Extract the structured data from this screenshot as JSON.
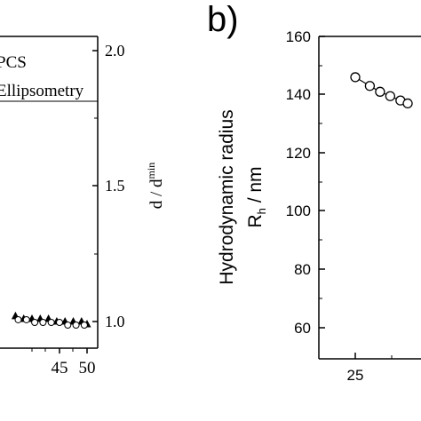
{
  "chart_data": [
    {
      "type": "scatter",
      "panel_label": "",
      "title": "",
      "xlabel": "",
      "ylabel_right": "d / d",
      "ylabel_right_sup": "min",
      "x_ticks": [
        "45",
        "50"
      ],
      "y_ticks_right": [
        "1.0",
        "1.5",
        "2.0"
      ],
      "xlim": [
        36.5,
        51.5
      ],
      "ylim_right": [
        0.95,
        2.0
      ],
      "legend": {
        "placement": "top-left",
        "entries": [
          "PCS",
          "Ellipsometry"
        ]
      },
      "series": [
        {
          "name": "Ellipsometry",
          "marker": "filled-triangle",
          "x": [
            37.0,
            38.5,
            40.0,
            41.5,
            43.0,
            44.5,
            46.0,
            47.5,
            49.0,
            50.0
          ],
          "y": [
            1.02,
            1.01,
            1.01,
            1.01,
            1.01,
            1.0,
            1.0,
            1.0,
            1.0,
            0.99
          ]
        },
        {
          "name": "PCS",
          "marker": "open-circle",
          "x": [
            37.5,
            39.0,
            40.5,
            42.0,
            43.5,
            45.0,
            46.5,
            48.0,
            49.5
          ],
          "y": [
            1.01,
            1.01,
            1.0,
            1.0,
            1.0,
            1.0,
            0.99,
            0.99,
            0.99
          ]
        }
      ]
    },
    {
      "type": "line",
      "panel_label": "b)",
      "title": "",
      "xlabel": "",
      "ylabel": "Hydrodynamic radius",
      "ylabel_line2_main": "R",
      "ylabel_line2_sub": "h",
      "ylabel_line2_rest": " / nm",
      "x_ticks": [
        "25"
      ],
      "y_ticks": [
        "60",
        "80",
        "100",
        "120",
        "140",
        "160"
      ],
      "xlim": [
        22,
        32
      ],
      "ylim": [
        50,
        160
      ],
      "series": [
        {
          "name": "",
          "marker": "open-circle",
          "x": [
            25.0,
            26.0,
            26.7,
            27.4,
            28.1,
            28.6
          ],
          "y": [
            146,
            143,
            141,
            139.5,
            138,
            137
          ]
        }
      ]
    }
  ]
}
